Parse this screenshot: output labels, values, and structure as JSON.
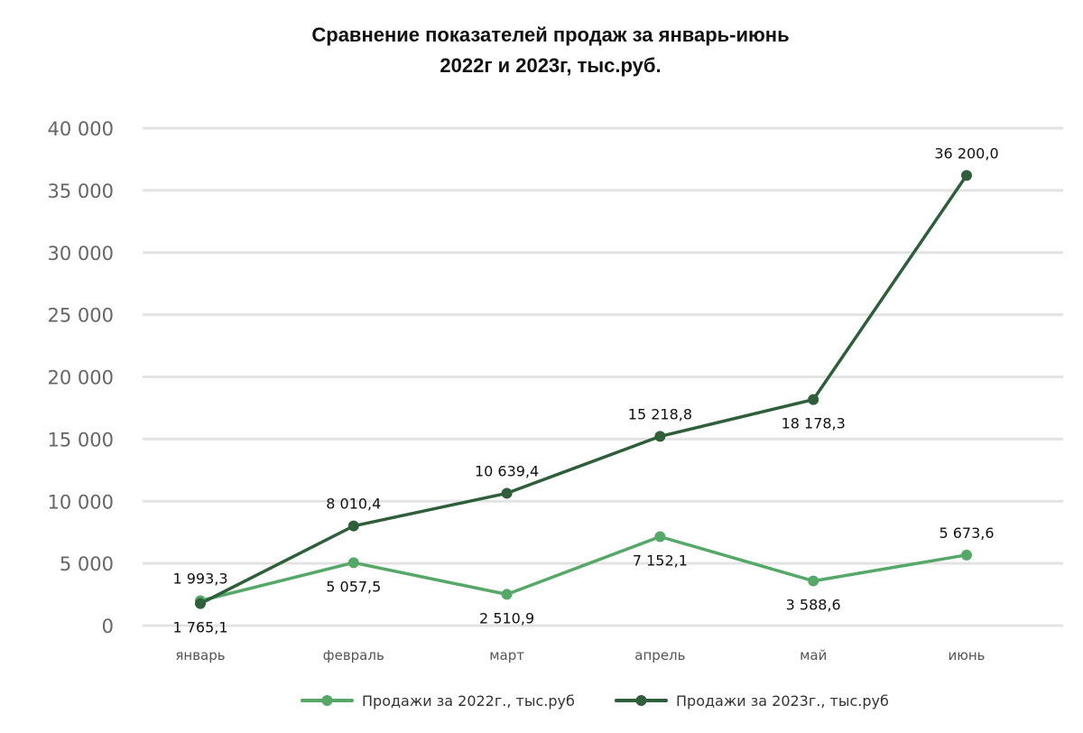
{
  "chart_data": {
    "type": "line",
    "title": [
      "Сравнение показателей продаж за январь-июнь",
      "2022г и 2023г, тыс.руб."
    ],
    "categories": [
      "январь",
      "февраль",
      "март",
      "апрель",
      "май",
      "июнь"
    ],
    "ylim": [
      0,
      40000
    ],
    "yticks": [
      0,
      5000,
      10000,
      15000,
      20000,
      25000,
      30000,
      35000,
      40000
    ],
    "ytick_labels": [
      "0",
      "5 000",
      "10 000",
      "15 000",
      "20 000",
      "25 000",
      "30 000",
      "35 000",
      "40 000"
    ],
    "grid": true,
    "legend_position": "bottom",
    "series": [
      {
        "name": "Продажи за 2022г., тыс.руб",
        "color": "#55a868",
        "values": [
          1993.3,
          5057.5,
          2510.9,
          7152.1,
          3588.6,
          5673.6
        ],
        "labels": [
          "1 993,3",
          "5 057,5",
          "2 510,9",
          "7 152,1",
          "3 588,6",
          "5 673,6"
        ],
        "label_positions": [
          "above",
          "below",
          "below",
          "below",
          "below",
          "above"
        ]
      },
      {
        "name": "Продажи за 2023г., тыс.руб",
        "color": "#2e5e3a",
        "values": [
          1765.1,
          8010.4,
          10639.4,
          15218.8,
          18178.3,
          36200.0
        ],
        "labels": [
          "1 765,1",
          "8 010,4",
          "10 639,4",
          "15 218,8",
          "18 178,3",
          "36 200,0"
        ],
        "label_positions": [
          "below",
          "above",
          "above",
          "above",
          "below",
          "above"
        ]
      }
    ]
  }
}
